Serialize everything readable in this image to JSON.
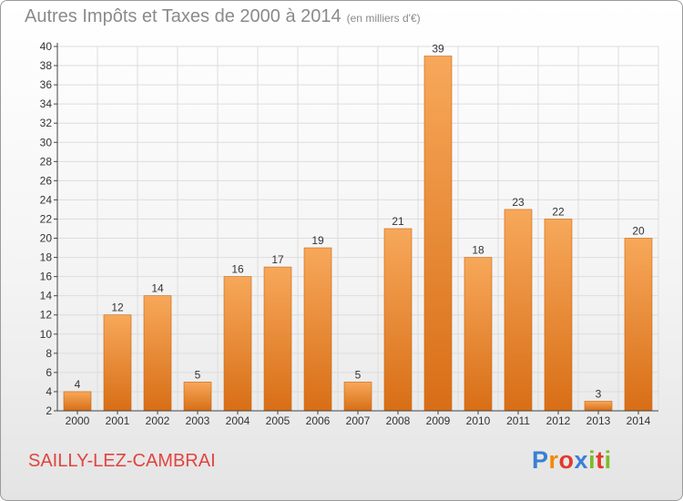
{
  "header": {
    "title": "Autres Impôts et Taxes de 2000 à 2014",
    "unit": "(en milliers d'€)"
  },
  "commune": "SAILLY-LEZ-CAMBRAI",
  "logo": {
    "text": "Proxiti",
    "letter_colors": [
      "#3a7fd5",
      "#f08a00",
      "#e23a2e",
      "#3a7fd5",
      "#7dbb2a",
      "#e23a2e",
      "#7dbb2a"
    ]
  },
  "colors": {
    "bar_top": "#f7a85a",
    "bar_bottom": "#d86e16",
    "bar_edge": "#c9640f",
    "grid": "#dddddd",
    "axis": "#444444"
  },
  "chart_data": {
    "type": "bar",
    "title": "Autres Impôts et Taxes de 2000 à 2014",
    "subtitle": "(en milliers d'€)",
    "xlabel": "",
    "ylabel": "",
    "categories": [
      "2000",
      "2001",
      "2002",
      "2003",
      "2004",
      "2005",
      "2006",
      "2007",
      "2008",
      "2009",
      "2010",
      "2011",
      "2012",
      "2013",
      "2014"
    ],
    "values": [
      4,
      12,
      14,
      5,
      16,
      17,
      19,
      5,
      21,
      39,
      18,
      23,
      22,
      3,
      20
    ],
    "ylim": [
      2,
      40
    ],
    "yticks": [
      2,
      4,
      6,
      8,
      10,
      12,
      14,
      16,
      18,
      20,
      22,
      24,
      26,
      28,
      30,
      32,
      34,
      36,
      38,
      40
    ],
    "grid": true,
    "legend": "none"
  }
}
